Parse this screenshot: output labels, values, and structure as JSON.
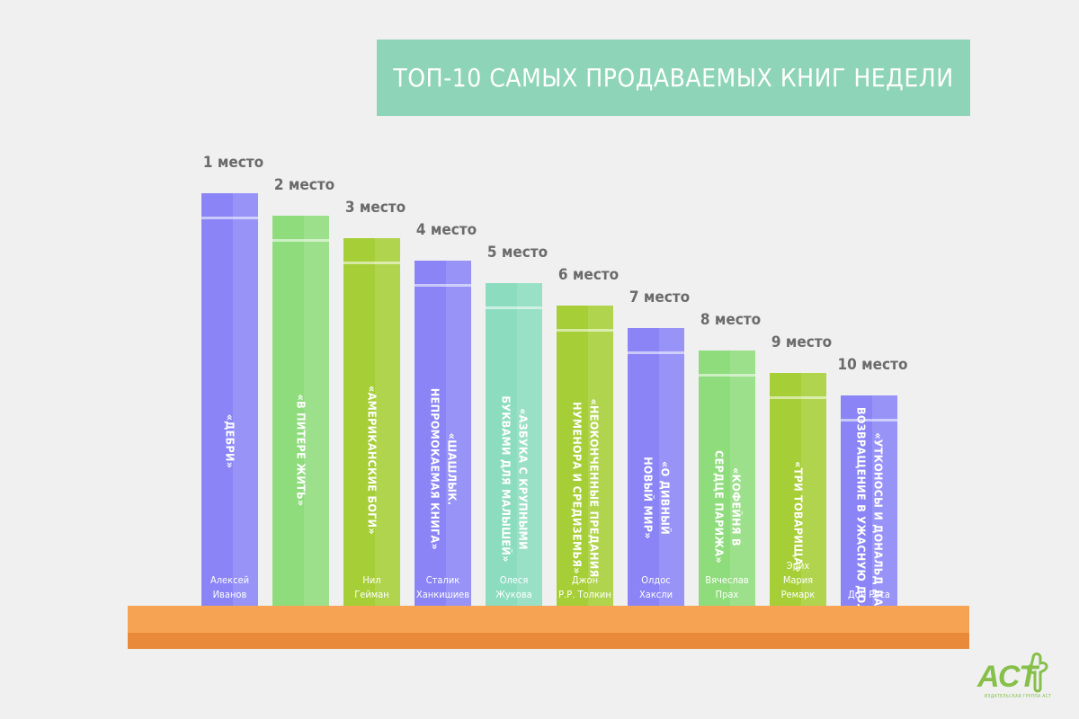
{
  "header": {
    "title": "ТОП-10 САМЫХ ПРОДАВАЕМЫХ КНИГ НЕДЕЛИ"
  },
  "colors": {
    "banner": "#8ed4b8",
    "shelf_top": "#f7a354",
    "shelf_bottom": "#e98a3b",
    "label": "#6b6b6b"
  },
  "chart_data": {
    "type": "bar",
    "title": "ТОП-10 САМЫХ ПРОДАВАЕМЫХ КНИГ НЕДЕЛИ",
    "categories": [
      "1 место",
      "2 место",
      "3 место",
      "4 место",
      "5 место",
      "6 место",
      "7 место",
      "8 место",
      "9 место",
      "10 место"
    ],
    "values": [
      10,
      9,
      8,
      7,
      6,
      5,
      4,
      3,
      2,
      1
    ],
    "books": [
      {
        "place": "1 место",
        "title_lines": [
          "«ДЕБРИ»"
        ],
        "author_lines": [
          "Алексей",
          "Иванов"
        ],
        "color": "#8a84f6"
      },
      {
        "place": "2 место",
        "title_lines": [
          "«В ПИТЕРЕ ЖИТЬ»"
        ],
        "author_lines": [],
        "color": "#8fdc7c"
      },
      {
        "place": "3 место",
        "title_lines": [
          "«АМЕРИКАНСКИЕ БОГИ»"
        ],
        "author_lines": [
          "Нил",
          "Гейман"
        ],
        "color": "#a6ce36"
      },
      {
        "place": "4 место",
        "title_lines": [
          "«ШАШЛЫК.",
          "НЕПРОМОКАЕМАЯ КНИГА»"
        ],
        "author_lines": [
          "Сталик",
          "Ханкишиев"
        ],
        "color": "#8a84f6"
      },
      {
        "place": "5 место",
        "title_lines": [
          "«АЗБУКА С КРУПНЫМИ",
          "БУКВАМИ ДЛЯ МАЛЫШЕЙ»"
        ],
        "author_lines": [
          "Олеся",
          "Жукова"
        ],
        "color": "#8cdcc0"
      },
      {
        "place": "6 место",
        "title_lines": [
          "«НЕОКОНЧЕННЫЕ ПРЕДАНИЯ",
          "НУМЕНОРА И СРЕДИЗЕМЬЯ»"
        ],
        "author_lines": [
          "Джон",
          "Р.Р. Толкин"
        ],
        "color": "#a6ce36"
      },
      {
        "place": "7 место",
        "title_lines": [
          "«О ДИВНЫЙ",
          "НОВЫЙ МИР»"
        ],
        "author_lines": [
          "Олдос",
          "Хаксли"
        ],
        "color": "#8a84f6"
      },
      {
        "place": "8 место",
        "title_lines": [
          "«КОФЕЙНЯ В",
          "СЕРДЦЕ ПАРИЖА»"
        ],
        "author_lines": [
          "Вячеслав",
          "Прах"
        ],
        "color": "#8fdc7c"
      },
      {
        "place": "9 место",
        "title_lines": [
          "«ТРИ ТОВАРИЩА»"
        ],
        "author_lines": [
          "Эрих",
          "Мария",
          "Ремарк"
        ],
        "color": "#a6ce36"
      },
      {
        "place": "10 место",
        "title_lines": [
          "«УТКОНОСЫ И ДОНАЛЬД ДАК:",
          "ВОЗВРАЩЕНИЕ В УЖАСНУЮ ДОЛИНУ»"
        ],
        "author_lines": [
          "Дон Роса"
        ],
        "color": "#8a84f6"
      }
    ]
  },
  "logo": {
    "text": "АСТ",
    "caption": "ИЗДАТЕЛЬСКАЯ ГРУППА АСТ",
    "color": "#86c04a"
  }
}
